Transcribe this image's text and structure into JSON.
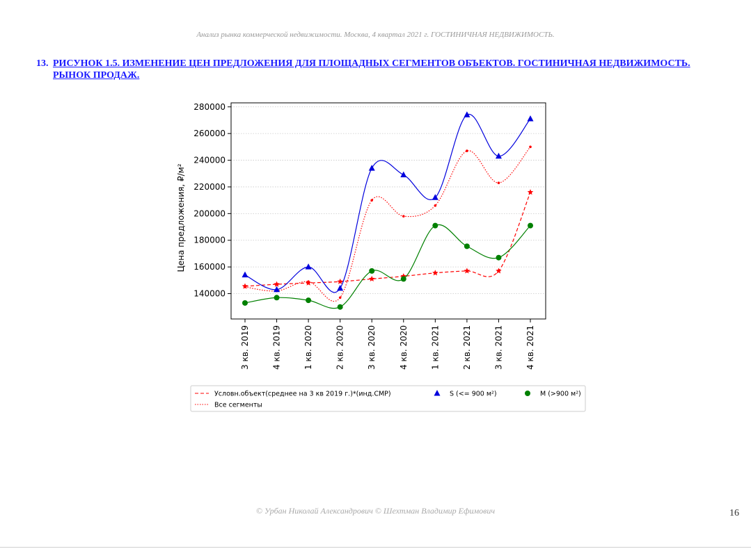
{
  "page": {
    "header": "Анализ рынка коммерческой недвижимости.   Москва, 4 квартал 2021 г.   ГОСТИНИЧНАЯ НЕДВИЖИМОСТЬ.",
    "figure_number": "13.",
    "figure_title": "РИСУНОК 1.5. ИЗМЕНЕНИЕ ЦЕН ПРЕДЛОЖЕНИЯ ДЛЯ ПЛОЩАДНЫХ СЕГМЕНТОВ ОБЪЕКТОВ. ГОСТИНИЧНАЯ НЕДВИЖИМОСТЬ. РЫНОК ПРОДАЖ.",
    "footer": "© Урбан Николай Александрович   © Шехтман Владимир Ефимович",
    "page_number": "16"
  },
  "chart_data": {
    "type": "line",
    "title": "",
    "xlabel": "",
    "ylabel": "Цена предложения, ₽/м²",
    "categories": [
      "3 кв. 2019",
      "4 кв. 2019",
      "1 кв. 2020",
      "2 кв. 2020",
      "3 кв. 2020",
      "4 кв. 2020",
      "1 кв. 2021",
      "2 кв. 2021",
      "3 кв. 2021",
      "4 кв. 2021"
    ],
    "ylim": [
      121000,
      283000
    ],
    "yticks": [
      140000,
      160000,
      180000,
      200000,
      220000,
      240000,
      260000,
      280000
    ],
    "grid": "horizontal dotted",
    "legend_position": "bottom",
    "series": [
      {
        "name": "Условн.объект(среднее на 3 кв 2019 г.)*(инд.СМР)",
        "values": [
          145500,
          147000,
          148000,
          149000,
          151000,
          153000,
          155500,
          157000,
          157000,
          216000
        ],
        "color": "#ff0000",
        "line": "dashed",
        "marker": "star"
      },
      {
        "name": "Все сегменты",
        "values": [
          145000,
          142000,
          149000,
          137000,
          210000,
          198000,
          206000,
          247000,
          223000,
          250000
        ],
        "color": "#ff0000",
        "line": "dotted",
        "marker": "point"
      },
      {
        "name": "S (<= 900 м²)",
        "values": [
          154000,
          143000,
          160000,
          144000,
          234000,
          229000,
          212000,
          274000,
          243000,
          271000
        ],
        "color": "#0000dd",
        "line": "solid",
        "marker": "triangle"
      },
      {
        "name": "M (>900 м²)",
        "values": [
          133000,
          137000,
          135000,
          130000,
          157000,
          151000,
          191000,
          175500,
          167000,
          191000
        ],
        "color": "#008000",
        "line": "solid",
        "marker": "circle"
      }
    ]
  }
}
